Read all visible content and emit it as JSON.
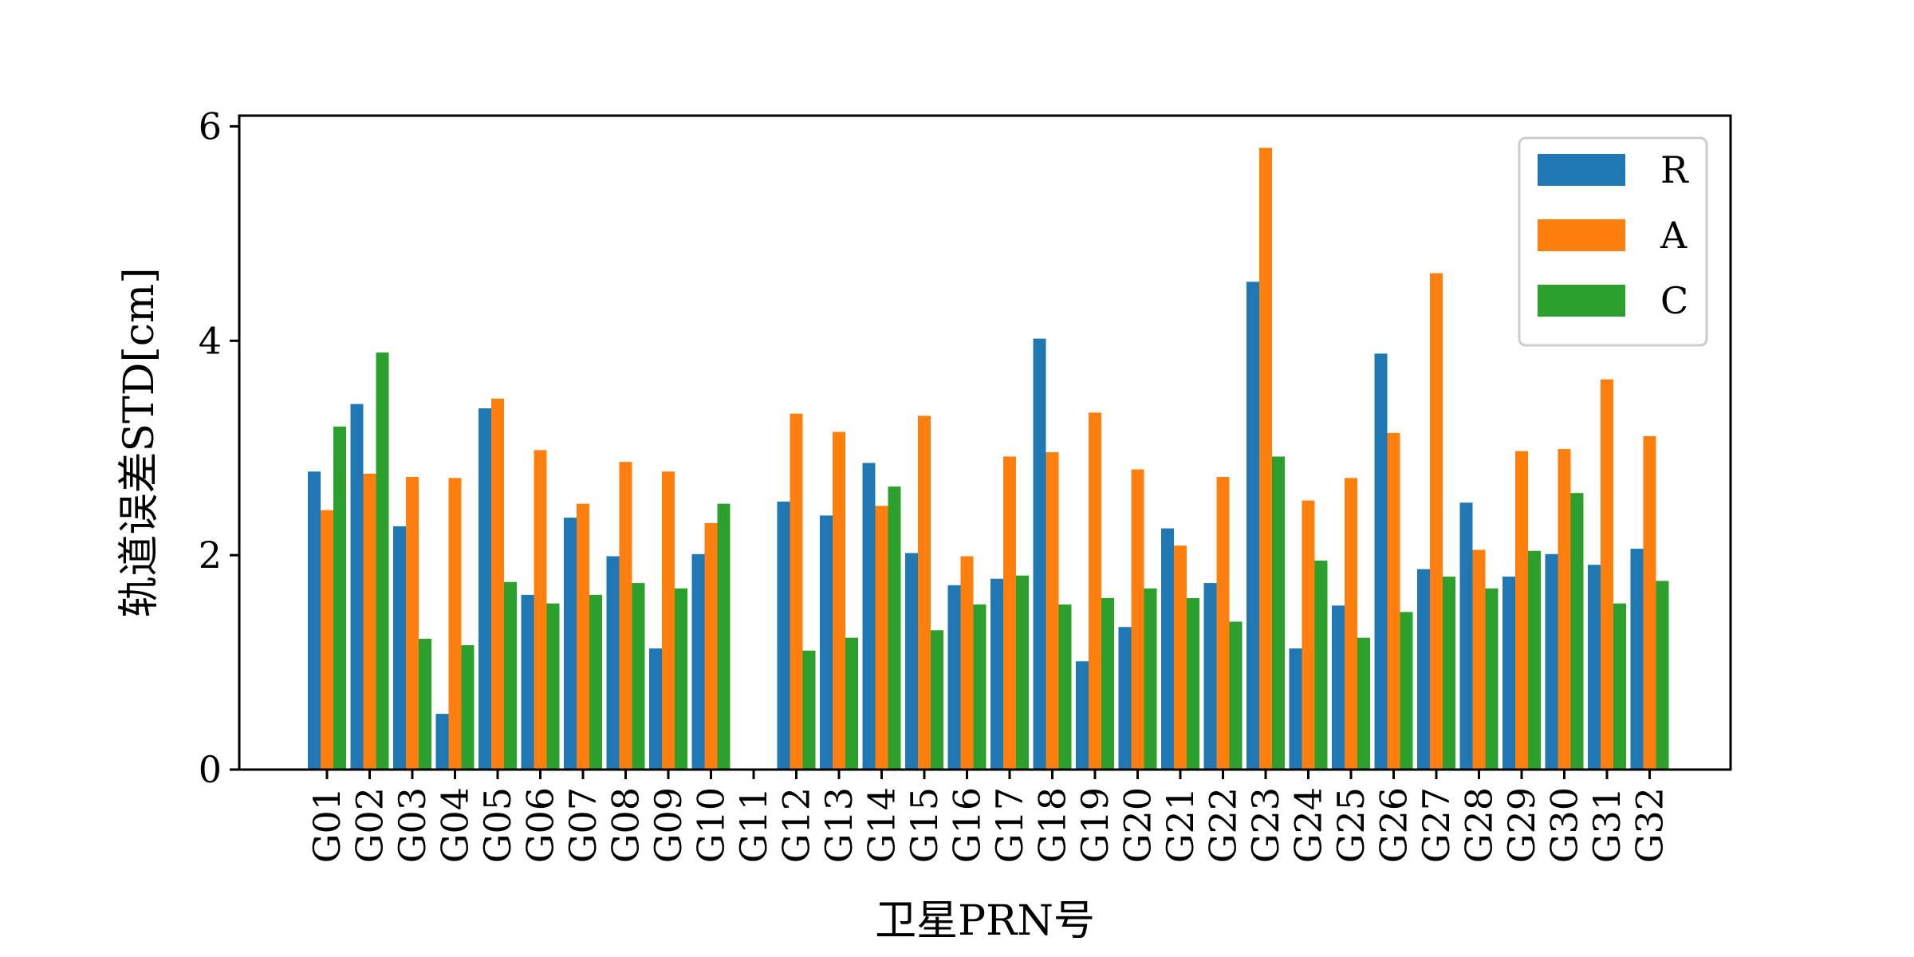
{
  "chart_data": {
    "type": "bar",
    "xlabel": "卫星PRN号",
    "ylabel": "轨道误差STD[cm]",
    "ylim": [
      0,
      6.1
    ],
    "yticks": [
      0,
      2,
      4,
      6
    ],
    "grid": false,
    "legend_position": "top-right",
    "categories": [
      "G01",
      "G02",
      "G03",
      "G04",
      "G05",
      "G06",
      "G07",
      "G08",
      "G09",
      "G10",
      "G11",
      "G12",
      "G13",
      "G14",
      "G15",
      "G16",
      "G17",
      "G18",
      "G19",
      "G20",
      "G21",
      "G22",
      "G23",
      "G24",
      "G25",
      "G26",
      "G27",
      "G28",
      "G29",
      "G30",
      "G31",
      "G32"
    ],
    "series": [
      {
        "name": "R",
        "color": "#1f77b4",
        "values": [
          2.78,
          3.41,
          2.27,
          0.52,
          3.37,
          1.63,
          2.35,
          1.99,
          1.13,
          2.01,
          0,
          2.5,
          2.37,
          2.86,
          2.02,
          1.72,
          1.78,
          4.02,
          1.01,
          1.33,
          2.25,
          1.74,
          4.55,
          1.13,
          1.53,
          3.88,
          1.87,
          2.49,
          1.8,
          2.01,
          1.91,
          2.06
        ]
      },
      {
        "name": "A",
        "color": "#ff7f0e",
        "values": [
          2.42,
          2.76,
          2.73,
          2.72,
          3.46,
          2.98,
          2.48,
          2.87,
          2.78,
          2.3,
          0,
          3.32,
          3.15,
          2.46,
          3.3,
          1.99,
          2.92,
          2.96,
          3.33,
          2.8,
          2.09,
          2.73,
          5.8,
          2.51,
          2.72,
          3.14,
          4.63,
          2.05,
          2.97,
          2.99,
          3.64,
          3.11
        ]
      },
      {
        "name": "C",
        "color": "#2ca02c",
        "values": [
          3.2,
          3.89,
          1.22,
          1.16,
          1.75,
          1.55,
          1.63,
          1.74,
          1.69,
          2.48,
          0,
          1.11,
          1.23,
          2.64,
          1.3,
          1.54,
          1.81,
          1.54,
          1.6,
          1.69,
          1.6,
          1.38,
          2.92,
          1.95,
          1.23,
          1.47,
          1.8,
          1.69,
          2.04,
          2.58,
          1.55,
          1.76
        ]
      }
    ]
  }
}
